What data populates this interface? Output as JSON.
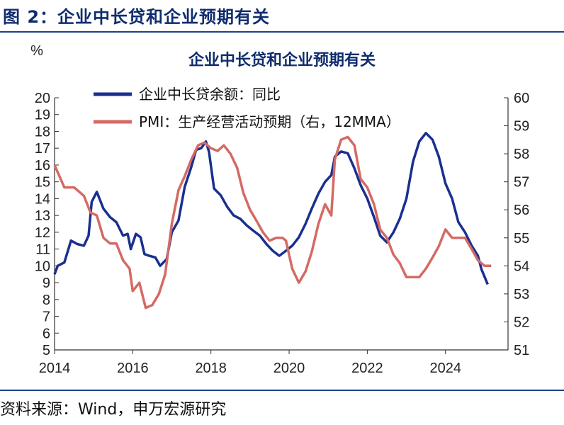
{
  "figure": {
    "title": "图 2：企业中长贷和企业预期有关",
    "source": "资料来源：Wind，申万宏源研究"
  },
  "colors": {
    "series_a": "#1a2f8f",
    "series_b": "#d46a64",
    "axis": "#333333",
    "frame": "#1f3f8f"
  },
  "chart_data": {
    "type": "line",
    "title": "企业中长贷和企业预期有关",
    "y_unit": "%",
    "legend_position": "top",
    "grid": false,
    "x_ticks": [
      "2014",
      "2016",
      "2018",
      "2020",
      "2022",
      "2024"
    ],
    "x_range": [
      2014.0,
      2025.6
    ],
    "y_left": {
      "range": [
        5,
        20
      ],
      "ticks": [
        5,
        6,
        7,
        8,
        9,
        10,
        11,
        12,
        13,
        14,
        15,
        16,
        17,
        18,
        19,
        20
      ]
    },
    "y_right": {
      "range": [
        51,
        60
      ],
      "ticks": [
        51,
        52,
        53,
        54,
        55,
        56,
        57,
        58,
        59,
        60
      ]
    },
    "series": [
      {
        "name": "企业中长贷余额：同比",
        "axis": "left",
        "points": [
          [
            2014.0,
            9.5
          ],
          [
            2014.08,
            10.0
          ],
          [
            2014.25,
            10.2
          ],
          [
            2014.42,
            11.5
          ],
          [
            2014.58,
            11.3
          ],
          [
            2014.75,
            11.2
          ],
          [
            2014.87,
            11.8
          ],
          [
            2014.95,
            13.8
          ],
          [
            2015.08,
            14.4
          ],
          [
            2015.25,
            13.4
          ],
          [
            2015.42,
            12.9
          ],
          [
            2015.58,
            12.6
          ],
          [
            2015.75,
            11.8
          ],
          [
            2015.87,
            11.9
          ],
          [
            2015.95,
            11.0
          ],
          [
            2016.08,
            11.9
          ],
          [
            2016.2,
            11.7
          ],
          [
            2016.3,
            10.7
          ],
          [
            2016.42,
            10.6
          ],
          [
            2016.58,
            10.5
          ],
          [
            2016.7,
            10.0
          ],
          [
            2016.87,
            10.4
          ],
          [
            2017.0,
            12.0
          ],
          [
            2017.17,
            12.7
          ],
          [
            2017.33,
            14.7
          ],
          [
            2017.5,
            15.9
          ],
          [
            2017.62,
            16.9
          ],
          [
            2017.75,
            17.0
          ],
          [
            2017.87,
            17.4
          ],
          [
            2017.95,
            16.8
          ],
          [
            2018.08,
            14.6
          ],
          [
            2018.25,
            14.2
          ],
          [
            2018.42,
            13.5
          ],
          [
            2018.58,
            13.0
          ],
          [
            2018.75,
            12.8
          ],
          [
            2018.92,
            12.4
          ],
          [
            2019.08,
            12.1
          ],
          [
            2019.25,
            11.8
          ],
          [
            2019.42,
            11.3
          ],
          [
            2019.58,
            10.9
          ],
          [
            2019.75,
            10.6
          ],
          [
            2019.92,
            10.9
          ],
          [
            2020.08,
            11.2
          ],
          [
            2020.25,
            11.7
          ],
          [
            2020.42,
            12.5
          ],
          [
            2020.58,
            13.4
          ],
          [
            2020.75,
            14.3
          ],
          [
            2020.92,
            15.0
          ],
          [
            2021.08,
            15.4
          ],
          [
            2021.17,
            16.5
          ],
          [
            2021.33,
            16.8
          ],
          [
            2021.5,
            16.7
          ],
          [
            2021.67,
            15.8
          ],
          [
            2021.83,
            14.8
          ],
          [
            2022.0,
            14.0
          ],
          [
            2022.17,
            12.9
          ],
          [
            2022.33,
            11.8
          ],
          [
            2022.5,
            11.4
          ],
          [
            2022.67,
            12.0
          ],
          [
            2022.83,
            12.8
          ],
          [
            2023.0,
            14.0
          ],
          [
            2023.17,
            16.2
          ],
          [
            2023.33,
            17.4
          ],
          [
            2023.5,
            17.9
          ],
          [
            2023.67,
            17.5
          ],
          [
            2023.83,
            16.5
          ],
          [
            2024.0,
            14.9
          ],
          [
            2024.17,
            14.0
          ],
          [
            2024.33,
            12.6
          ],
          [
            2024.5,
            12.0
          ],
          [
            2024.67,
            11.2
          ],
          [
            2024.83,
            10.6
          ],
          [
            2024.92,
            9.8
          ],
          [
            2025.08,
            8.9
          ]
        ]
      },
      {
        "name": "PMI：生产经营活动预期（右，12MMA）",
        "axis": "right",
        "points": [
          [
            2014.0,
            57.6
          ],
          [
            2014.25,
            56.8
          ],
          [
            2014.5,
            56.8
          ],
          [
            2014.75,
            56.5
          ],
          [
            2014.92,
            55.9
          ],
          [
            2015.08,
            55.8
          ],
          [
            2015.25,
            55.0
          ],
          [
            2015.42,
            54.8
          ],
          [
            2015.58,
            54.8
          ],
          [
            2015.75,
            54.2
          ],
          [
            2015.92,
            53.9
          ],
          [
            2016.0,
            53.1
          ],
          [
            2016.17,
            53.4
          ],
          [
            2016.33,
            52.5
          ],
          [
            2016.5,
            52.6
          ],
          [
            2016.67,
            53.0
          ],
          [
            2016.83,
            53.7
          ],
          [
            2017.0,
            55.5
          ],
          [
            2017.17,
            56.7
          ],
          [
            2017.33,
            57.2
          ],
          [
            2017.5,
            57.8
          ],
          [
            2017.67,
            58.3
          ],
          [
            2017.83,
            58.4
          ],
          [
            2018.0,
            58.2
          ],
          [
            2018.17,
            58.1
          ],
          [
            2018.33,
            58.3
          ],
          [
            2018.5,
            58.0
          ],
          [
            2018.67,
            57.5
          ],
          [
            2018.83,
            56.6
          ],
          [
            2019.0,
            56.0
          ],
          [
            2019.17,
            55.6
          ],
          [
            2019.33,
            55.2
          ],
          [
            2019.5,
            54.9
          ],
          [
            2019.67,
            55.0
          ],
          [
            2019.83,
            55.0
          ],
          [
            2019.92,
            54.9
          ],
          [
            2020.08,
            53.9
          ],
          [
            2020.25,
            53.4
          ],
          [
            2020.42,
            53.8
          ],
          [
            2020.58,
            54.5
          ],
          [
            2020.75,
            55.5
          ],
          [
            2020.92,
            56.2
          ],
          [
            2021.08,
            55.8
          ],
          [
            2021.17,
            57.8
          ],
          [
            2021.33,
            58.5
          ],
          [
            2021.5,
            58.6
          ],
          [
            2021.67,
            58.3
          ],
          [
            2021.83,
            57.1
          ],
          [
            2022.0,
            56.8
          ],
          [
            2022.17,
            56.2
          ],
          [
            2022.33,
            55.3
          ],
          [
            2022.5,
            55.0
          ],
          [
            2022.67,
            54.4
          ],
          [
            2022.83,
            54.1
          ],
          [
            2023.0,
            53.6
          ],
          [
            2023.17,
            53.6
          ],
          [
            2023.33,
            53.6
          ],
          [
            2023.5,
            53.9
          ],
          [
            2023.67,
            54.3
          ],
          [
            2023.83,
            54.7
          ],
          [
            2024.0,
            55.3
          ],
          [
            2024.17,
            55.0
          ],
          [
            2024.33,
            55.0
          ],
          [
            2024.5,
            55.0
          ],
          [
            2024.67,
            54.6
          ],
          [
            2024.83,
            54.2
          ],
          [
            2025.0,
            54.0
          ],
          [
            2025.17,
            54.0
          ]
        ]
      }
    ]
  }
}
